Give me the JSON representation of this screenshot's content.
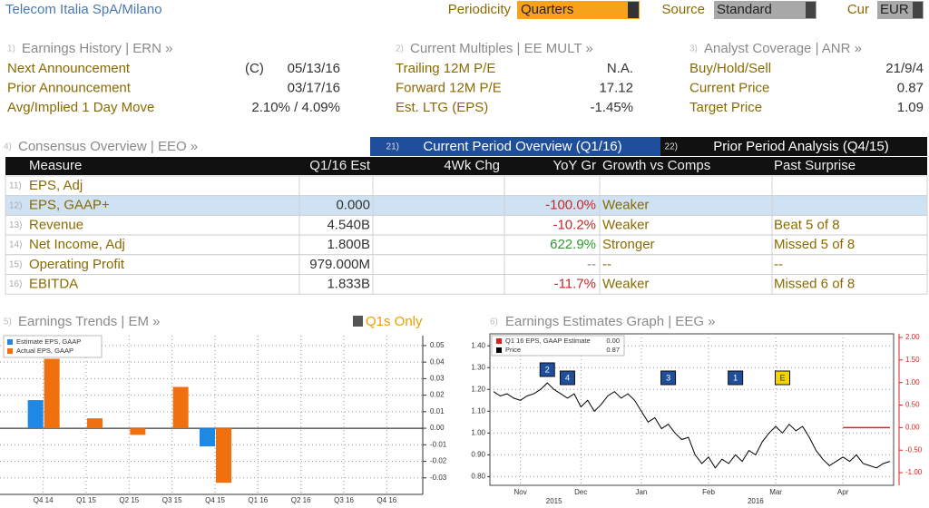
{
  "header": {
    "title": "Telecom Italia SpA/Milano",
    "periodicity_label": "Periodicity",
    "periodicity": "Quarters",
    "source_label": "Source",
    "source": "Standard",
    "currency_label": "Cur",
    "currency": "EUR"
  },
  "sections": [
    {
      "number": "1)",
      "title": "Earnings History | ERN »",
      "rows": [
        {
          "label": "Next Announcement",
          "flag": "(C)",
          "value": "05/13/16"
        },
        {
          "label": "Prior Announcement",
          "value": "03/17/16"
        },
        {
          "label": "Avg/Implied 1 Day Move",
          "value": "2.10% / 4.09%"
        }
      ]
    },
    {
      "number": "2)",
      "title": "Current Multiples | EE MULT »",
      "rows": [
        {
          "label": "Trailing 12M P/E",
          "value": "N.A."
        },
        {
          "label": "Forward 12M P/E",
          "value": "17.12"
        },
        {
          "label": "Est. LTG (EPS)",
          "value": "-1.45%"
        }
      ]
    },
    {
      "number": "3)",
      "title": "Analyst Coverage | ANR »",
      "rows": [
        {
          "label": "Buy/Hold/Sell",
          "value": "21/9/4"
        },
        {
          "label": "Current Price",
          "value": "0.87"
        },
        {
          "label": "Target Price",
          "value": "1.09"
        }
      ]
    }
  ],
  "consensus": {
    "number": "4)",
    "title": "Consensus Overview | EEO »",
    "tabs": [
      {
        "number": "21)",
        "label": "Current Period Overview (Q1/16)"
      },
      {
        "number": "22)",
        "label": "Prior Period Analysis (Q4/15)"
      }
    ],
    "columns": [
      "Measure",
      "Q1/16 Est",
      "4Wk Chg",
      "YoY Gr",
      "Growth vs Comps",
      "Past Surprise"
    ],
    "rows": [
      {
        "number": "11)",
        "measure": "EPS, Adj",
        "est": null,
        "chg": null,
        "yoy": null,
        "comps": null,
        "surprise": null
      },
      {
        "number": "12)",
        "measure": "EPS, GAAP+",
        "est": "0.000",
        "chg": null,
        "yoy": "-100.0%",
        "comps": "Weaker",
        "surprise": null
      },
      {
        "number": "13)",
        "measure": "Revenue",
        "est": "4.540B",
        "chg": null,
        "yoy": "-10.2%",
        "comps": "Weaker",
        "surprise": "Beat 5 of 8"
      },
      {
        "number": "14)",
        "measure": "Net Income, Adj",
        "est": "1.800B",
        "chg": null,
        "yoy": "622.9%",
        "comps": "Stronger",
        "surprise": "Missed 5 of 8"
      },
      {
        "number": "15)",
        "measure": "Operating Profit",
        "est": "979.000M",
        "chg": null,
        "yoy": "--",
        "comps": "--",
        "surprise": "--"
      },
      {
        "number": "16)",
        "measure": "EBITDA",
        "est": "1.833B",
        "chg": null,
        "yoy": "-11.7%",
        "comps": "Weaker",
        "surprise": "Missed 6 of 8"
      }
    ]
  },
  "earnings_trends": {
    "type": "bar",
    "number": "5)",
    "title": "Earnings Trends | EM »",
    "toggle": "Q1s Only",
    "categories": [
      "Q4 14",
      "Q1 15",
      "Q2 15",
      "Q3 15",
      "Q4 15",
      "Q1 16",
      "Q2 16",
      "Q3 16",
      "Q4 16"
    ],
    "series": [
      {
        "name": "Estimate EPS, GAAP",
        "color": "#1e88e5",
        "values": [
          0.017,
          null,
          null,
          null,
          -0.011,
          null,
          null,
          null,
          null
        ]
      },
      {
        "name": "Actual EPS, GAAP",
        "color": "#f07010",
        "values": [
          0.042,
          0.006,
          -0.004,
          0.025,
          -0.033,
          null,
          null,
          null,
          null
        ]
      }
    ],
    "ylim": [
      -0.04,
      0.056
    ],
    "yticks": [
      0.05,
      0.04,
      0.03,
      0.02,
      0.01,
      {
        "value": 0,
        "label": "0.00"
      },
      -0.01,
      -0.02,
      -0.03
    ],
    "grid": true
  },
  "estimates_graph": {
    "type": "line",
    "number": "6)",
    "title": "Earnings Estimates Graph | EEG »",
    "series": [
      {
        "name": "Q1 16 EPS, GAAP Estimate",
        "legend_value": "0.00",
        "color": "#e02020",
        "axis": "y2",
        "values": [
          null,
          null,
          null,
          null,
          null,
          null,
          null,
          null,
          null,
          null,
          null,
          null,
          null,
          null,
          null,
          null,
          null,
          null,
          null,
          null,
          null,
          null,
          null,
          null,
          null,
          null,
          null,
          null,
          null,
          null,
          null,
          null,
          null,
          null,
          null,
          null,
          null,
          null,
          null,
          null,
          null,
          null,
          null,
          null,
          null,
          null,
          null,
          null,
          null,
          null,
          null,
          null,
          0,
          0,
          0,
          0,
          0,
          0,
          0,
          0
        ]
      },
      {
        "name": "Price",
        "legend_value": "0.87",
        "color": "#000000",
        "values": [
          1.19,
          1.17,
          1.18,
          1.16,
          1.15,
          1.17,
          1.18,
          1.2,
          1.23,
          1.2,
          1.18,
          1.16,
          1.18,
          1.12,
          1.15,
          1.1,
          1.13,
          1.17,
          1.19,
          1.16,
          1.18,
          1.15,
          1.1,
          1.05,
          1.07,
          1.02,
          1.04,
          1.0,
          0.97,
          0.98,
          0.9,
          0.86,
          0.89,
          0.84,
          0.88,
          0.86,
          0.9,
          0.87,
          0.92,
          0.9,
          0.96,
          1.0,
          1.03,
          1.0,
          1.04,
          1.01,
          1.03,
          0.98,
          0.92,
          0.88,
          0.85,
          0.87,
          0.89,
          0.87,
          0.9,
          0.86,
          0.85,
          0.84,
          0.86,
          0.87
        ]
      }
    ],
    "xticks": [
      {
        "value": 4,
        "label": "Nov"
      },
      {
        "value": 13,
        "label": "Dec"
      },
      {
        "value": 22,
        "label": "Jan"
      },
      {
        "value": 32,
        "label": "Feb"
      },
      {
        "value": 42,
        "label": "Mar"
      },
      {
        "value": 52,
        "label": "Apr"
      }
    ],
    "years": [
      {
        "value": 9,
        "label": "2015"
      },
      {
        "value": 39,
        "label": "2016"
      }
    ],
    "events": [
      {
        "value": 8,
        "label": "2"
      },
      {
        "value": 11,
        "label": "4"
      },
      {
        "value": 26,
        "label": "3"
      },
      {
        "value": 36,
        "label": "1"
      },
      {
        "value": 43,
        "label": "E"
      }
    ],
    "ylim": [
      0.76,
      1.455
    ],
    "yticks": [
      {
        "value": 1.4,
        "label": "1.40"
      },
      {
        "value": 1.3,
        "label": "1.30"
      },
      {
        "value": 1.2,
        "label": "1.20"
      },
      {
        "value": 1.1,
        "label": "1.10"
      },
      {
        "value": 1,
        "label": "1.00"
      },
      {
        "value": 0.9,
        "label": "0.90"
      },
      {
        "value": 0.8,
        "label": "0.80"
      }
    ],
    "y2lim": [
      -1.28,
      2.08
    ],
    "y2ticks": [
      {
        "value": 2,
        "label": "2.00"
      },
      {
        "value": 1.5,
        "label": "1.50"
      },
      {
        "value": 1,
        "label": "1.00"
      },
      {
        "value": 0.5,
        "label": "0.50"
      },
      {
        "value": 0,
        "label": "0.00"
      },
      {
        "value": -0.5,
        "label": "-0.50"
      },
      {
        "value": -1,
        "label": "-1.00"
      }
    ],
    "grid": true
  }
}
